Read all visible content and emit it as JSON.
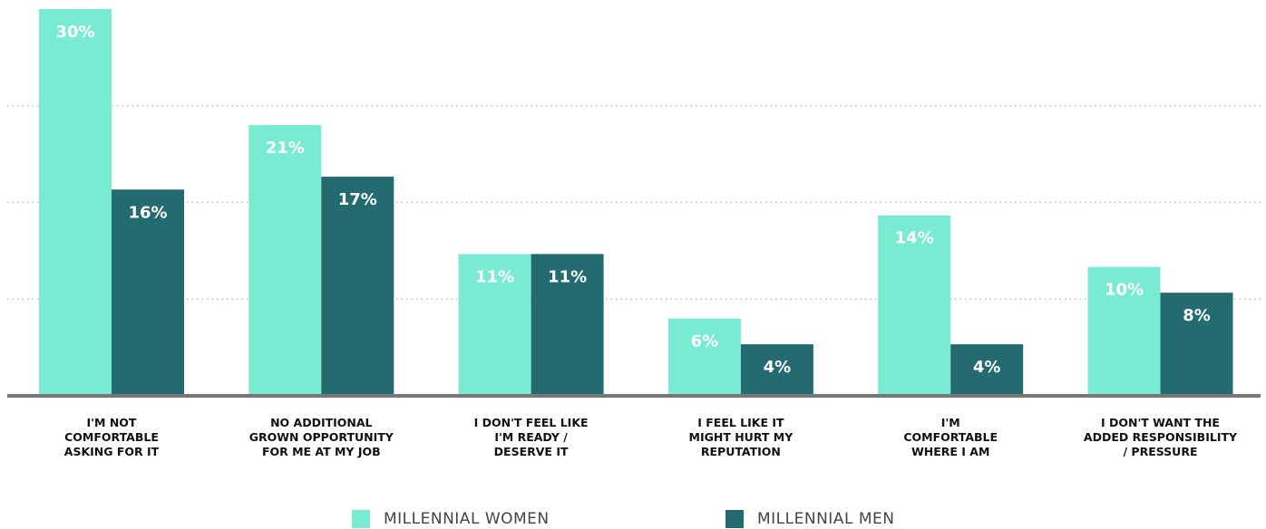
{
  "chart_data": {
    "type": "bar",
    "categories": [
      "I'M NOT\nCOMFORTABLE\nASKING FOR IT",
      "NO ADDITIONAL\nGROWN OPPORTUNITY\nFOR ME AT MY JOB",
      "I DON'T FEEL LIKE\nI'M READY /\nDESERVE IT",
      "I FEEL LIKE IT\nMIGHT HURT MY\nREPUTATION",
      "I'M\nCOMFORTABLE\nWHERE I AM",
      "I DON'T WANT THE\nADDED RESPONSIBILITY\n/ PRESSURE"
    ],
    "series": [
      {
        "name": "MILLENNIAL WOMEN",
        "color": "#7aebd3",
        "values": [
          30,
          21,
          11,
          6,
          14,
          10
        ],
        "value_labels": [
          "30%",
          "21%",
          "11%",
          "6%",
          "14%",
          "10%"
        ]
      },
      {
        "name": "MILLENNIAL MEN",
        "color": "#236b70",
        "values": [
          16,
          17,
          11,
          4,
          4,
          8
        ],
        "value_labels": [
          "16%",
          "17%",
          "11%",
          "4%",
          "4%",
          "8%"
        ]
      }
    ],
    "ylim": [
      0,
      30
    ],
    "yticks": [
      7.5,
      15,
      22.5
    ],
    "grid": true,
    "legend": "bottom"
  }
}
